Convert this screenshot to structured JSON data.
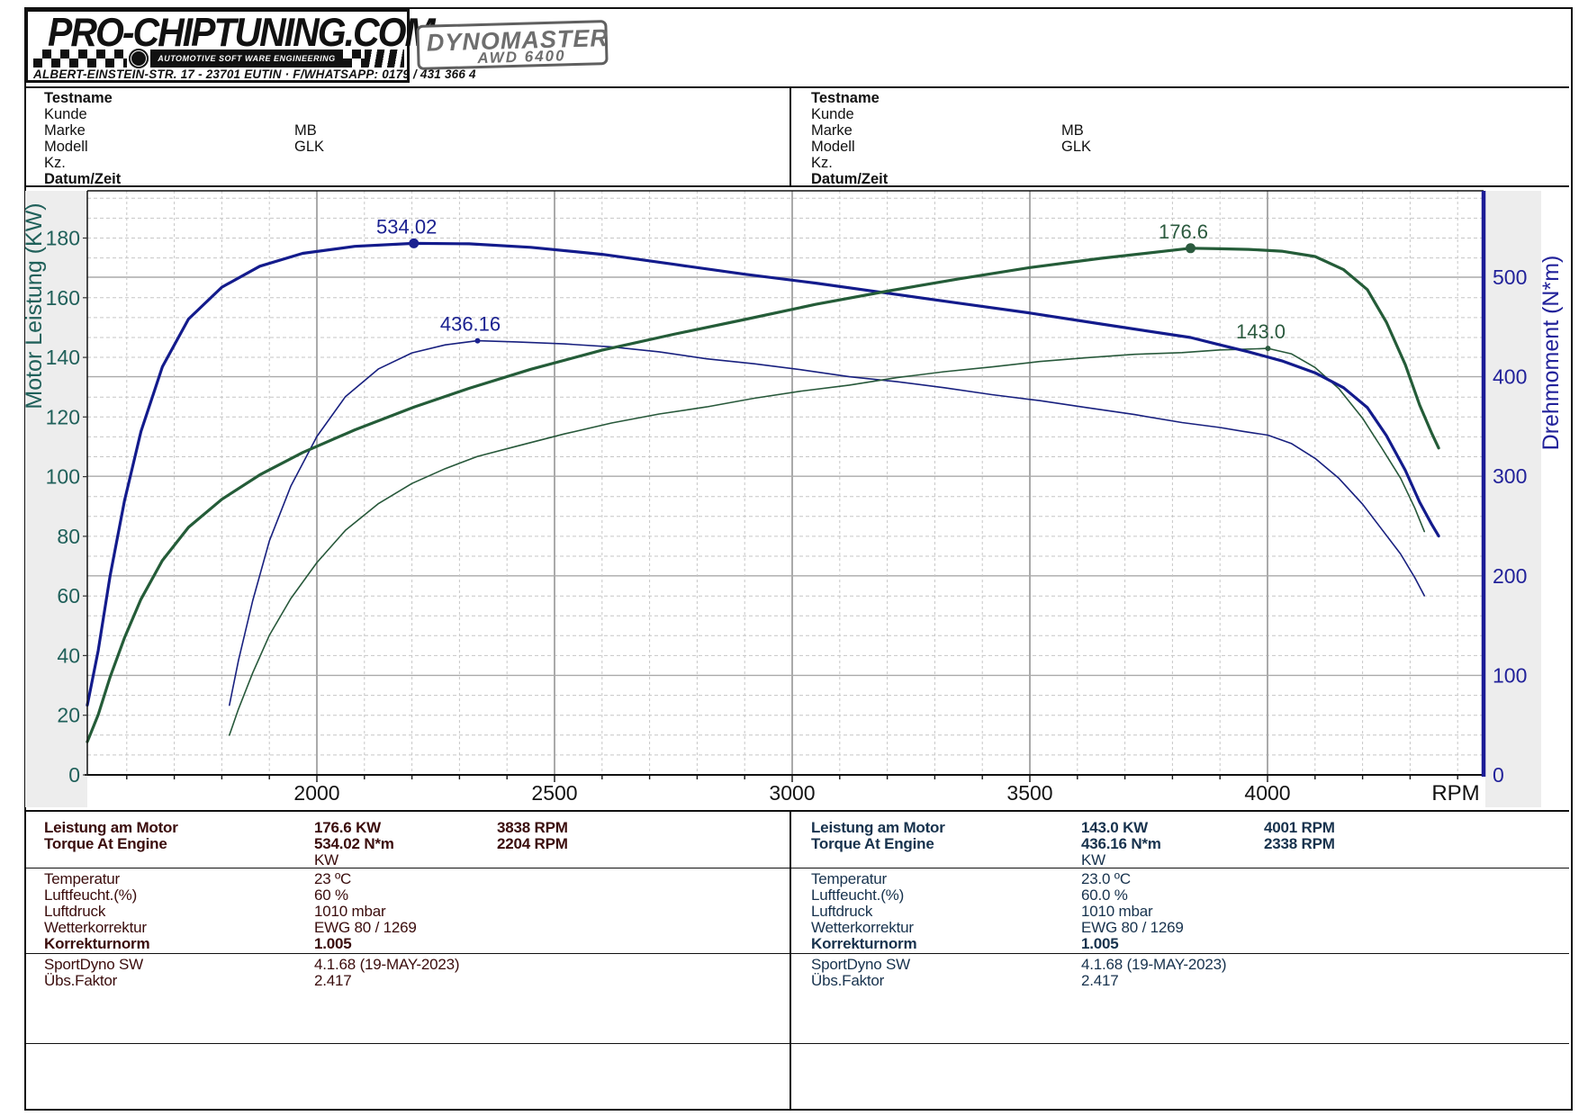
{
  "logo": {
    "brand": "PRO-CHIPTUNING.COM",
    "tagline": "AUTOMOTIVE SOFT WARE ENGINEERING",
    "address": "ALBERT-EINSTEIN-STR. 17 - 23701 EUTIN · F/WHATSAPP: 0179 / 431 366 4",
    "badge_line1": "DYNOMASTER",
    "badge_line2": "AWD 6400"
  },
  "header": {
    "left": {
      "rows": [
        {
          "label": "Testname",
          "value": "",
          "bold": true
        },
        {
          "label": "Kunde",
          "value": "",
          "bold": false
        },
        {
          "label": "Marke",
          "value": "MB",
          "bold": false
        },
        {
          "label": "Modell",
          "value": "GLK",
          "bold": false
        },
        {
          "label": "Kz.",
          "value": "",
          "bold": false
        },
        {
          "label": "Datum/Zeit",
          "value": "",
          "bold": true
        }
      ]
    },
    "right": {
      "rows": [
        {
          "label": "Testname",
          "value": "",
          "bold": true
        },
        {
          "label": "Kunde",
          "value": "",
          "bold": false
        },
        {
          "label": "Marke",
          "value": "MB",
          "bold": false
        },
        {
          "label": "Modell",
          "value": "GLK",
          "bold": false
        },
        {
          "label": "Kz.",
          "value": "",
          "bold": false
        },
        {
          "label": "Datum/Zeit",
          "value": "",
          "bold": true
        }
      ]
    }
  },
  "chart_data": {
    "type": "line",
    "xlabel": "RPM",
    "ylabel_left": "Motor Leistung (KW)",
    "ylabel_right": "Drehmoment (N*m)",
    "x_range": [
      1517,
      4454
    ],
    "x_ticks": [
      2000,
      2500,
      3000,
      3500,
      4000
    ],
    "x_minor_step": 100,
    "left_axis": {
      "range": [
        0,
        195.8
      ],
      "ticks": [
        0,
        20,
        40,
        60,
        80,
        100,
        120,
        140,
        160,
        180
      ],
      "color": "#20605a"
    },
    "right_axis": {
      "range": [
        0,
        586
      ],
      "ticks": [
        0,
        100,
        200,
        300,
        400,
        500
      ],
      "color": "#22229a"
    },
    "grid": {
      "solid": "#aaaaaa",
      "dashed": "#c6c6c6"
    },
    "series": [
      {
        "name": "torque-run2",
        "axis": "right",
        "unit": "N*m",
        "color": "#18207f",
        "width": 1.6,
        "points": [
          [
            1816,
            70
          ],
          [
            1835,
            115
          ],
          [
            1865,
            175
          ],
          [
            1900,
            235
          ],
          [
            1945,
            290
          ],
          [
            2000,
            340
          ],
          [
            2060,
            380
          ],
          [
            2130,
            408
          ],
          [
            2200,
            424
          ],
          [
            2270,
            432
          ],
          [
            2338,
            436.16
          ],
          [
            2420,
            435
          ],
          [
            2520,
            433
          ],
          [
            2620,
            430
          ],
          [
            2720,
            425
          ],
          [
            2820,
            418
          ],
          [
            2920,
            413
          ],
          [
            3020,
            407
          ],
          [
            3120,
            400
          ],
          [
            3220,
            395
          ],
          [
            3320,
            389
          ],
          [
            3420,
            382
          ],
          [
            3520,
            376
          ],
          [
            3620,
            369
          ],
          [
            3720,
            362
          ],
          [
            3820,
            354
          ],
          [
            3900,
            349
          ],
          [
            3950,
            345
          ],
          [
            4001,
            341.3
          ],
          [
            4050,
            333
          ],
          [
            4100,
            318
          ],
          [
            4150,
            298
          ],
          [
            4200,
            272
          ],
          [
            4240,
            247
          ],
          [
            4280,
            222
          ],
          [
            4310,
            198
          ],
          [
            4330,
            180
          ]
        ]
      },
      {
        "name": "power-run2",
        "axis": "left",
        "unit": "KW",
        "color": "#27583a",
        "width": 1.6,
        "points": [
          [
            1816,
            13.3
          ],
          [
            1835,
            22.1
          ],
          [
            1865,
            34.2
          ],
          [
            1900,
            46.8
          ],
          [
            1945,
            59.1
          ],
          [
            2000,
            71.2
          ],
          [
            2060,
            82
          ],
          [
            2130,
            91
          ],
          [
            2200,
            97.7
          ],
          [
            2270,
            102.7
          ],
          [
            2338,
            106.8
          ],
          [
            2420,
            110.2
          ],
          [
            2520,
            114.3
          ],
          [
            2620,
            118
          ],
          [
            2720,
            121
          ],
          [
            2820,
            123.4
          ],
          [
            2920,
            126.3
          ],
          [
            3020,
            128.7
          ],
          [
            3120,
            130.7
          ],
          [
            3220,
            133.2
          ],
          [
            3320,
            135.2
          ],
          [
            3420,
            136.8
          ],
          [
            3520,
            138.6
          ],
          [
            3620,
            139.9
          ],
          [
            3720,
            141
          ],
          [
            3820,
            141.6
          ],
          [
            3900,
            142.5
          ],
          [
            3950,
            142.7
          ],
          [
            4001,
            143
          ],
          [
            4050,
            141.2
          ],
          [
            4100,
            136.6
          ],
          [
            4150,
            129.5
          ],
          [
            4200,
            119.6
          ],
          [
            4240,
            109.7
          ],
          [
            4280,
            99.5
          ],
          [
            4310,
            89.4
          ],
          [
            4330,
            81.6
          ]
        ]
      },
      {
        "name": "torque-run1",
        "axis": "right",
        "unit": "N*m",
        "color": "#131b8c",
        "width": 3.2,
        "points": [
          [
            1517,
            70
          ],
          [
            1540,
            125
          ],
          [
            1565,
            200
          ],
          [
            1595,
            275
          ],
          [
            1630,
            345
          ],
          [
            1675,
            410
          ],
          [
            1730,
            458
          ],
          [
            1800,
            490
          ],
          [
            1880,
            511
          ],
          [
            1970,
            524
          ],
          [
            2080,
            531
          ],
          [
            2204,
            534.02
          ],
          [
            2320,
            533.5
          ],
          [
            2450,
            530
          ],
          [
            2600,
            523
          ],
          [
            2750,
            513
          ],
          [
            2900,
            503
          ],
          [
            3050,
            494
          ],
          [
            3200,
            484
          ],
          [
            3350,
            474
          ],
          [
            3500,
            464
          ],
          [
            3650,
            453
          ],
          [
            3838,
            439.4
          ],
          [
            3900,
            432
          ],
          [
            3960,
            425
          ],
          [
            4030,
            416
          ],
          [
            4100,
            404
          ],
          [
            4160,
            389
          ],
          [
            4210,
            369
          ],
          [
            4250,
            341
          ],
          [
            4290,
            306
          ],
          [
            4320,
            274
          ],
          [
            4345,
            252
          ],
          [
            4360,
            240
          ]
        ]
      },
      {
        "name": "power-run1",
        "axis": "left",
        "unit": "KW",
        "color": "#245c38",
        "width": 3.2,
        "points": [
          [
            1517,
            11.1
          ],
          [
            1540,
            20.2
          ],
          [
            1565,
            32.8
          ],
          [
            1595,
            45.9
          ],
          [
            1630,
            58.9
          ],
          [
            1675,
            71.9
          ],
          [
            1730,
            83
          ],
          [
            1800,
            92.4
          ],
          [
            1880,
            100.6
          ],
          [
            1970,
            108.1
          ],
          [
            2080,
            115.7
          ],
          [
            2204,
            123.3
          ],
          [
            2320,
            129.6
          ],
          [
            2450,
            136
          ],
          [
            2600,
            142.4
          ],
          [
            2750,
            147.7
          ],
          [
            2900,
            152.7
          ],
          [
            3050,
            157.8
          ],
          [
            3200,
            162.2
          ],
          [
            3350,
            166.3
          ],
          [
            3500,
            170.1
          ],
          [
            3650,
            173.2
          ],
          [
            3838,
            176.6
          ],
          [
            3900,
            176.4
          ],
          [
            3960,
            176.2
          ],
          [
            4030,
            175.6
          ],
          [
            4100,
            173.8
          ],
          [
            4160,
            169.4
          ],
          [
            4210,
            162.7
          ],
          [
            4250,
            151.8
          ],
          [
            4290,
            137.5
          ],
          [
            4320,
            124
          ],
          [
            4345,
            114.7
          ],
          [
            4360,
            109.6
          ]
        ]
      }
    ],
    "annotations": [
      {
        "text": "534.02",
        "rpm": 2204,
        "value": 534.02,
        "axis": "right",
        "color": "#1b2190",
        "marker_r": 5.5
      },
      {
        "text": "436.16",
        "rpm": 2338,
        "value": 436.16,
        "axis": "right",
        "color": "#1b2190",
        "marker_r": 3
      },
      {
        "text": "176.6",
        "rpm": 3838,
        "value": 176.6,
        "axis": "left",
        "color": "#2b5a3e",
        "marker_r": 5.5
      },
      {
        "text": "143.0",
        "rpm": 4001,
        "value": 143.0,
        "axis": "left",
        "color": "#2b5a3e",
        "marker_r": 3
      }
    ]
  },
  "results": {
    "left": {
      "text_color": "#3a0c0c",
      "peak_rows": [
        {
          "label": "Leistung am Motor",
          "value": "176.6 KW",
          "rpm": "3838 RPM",
          "bold": true
        },
        {
          "label": "Torque At Engine",
          "value": "534.02 N*m",
          "rpm": "2204 RPM",
          "bold": true
        },
        {
          "label": "",
          "value": "KW",
          "rpm": "",
          "bold": false
        }
      ],
      "info_rows": [
        {
          "label": "Temperatur",
          "value": "23 ºC",
          "bold": false
        },
        {
          "label": "Luftfeucht.(%)",
          "value": "60 %",
          "bold": false
        },
        {
          "label": "Luftdruck",
          "value": "1010 mbar",
          "bold": false
        },
        {
          "label": "Wetterkorrektur",
          "value": "EWG 80 / 1269",
          "bold": false
        },
        {
          "label": "Korrekturnorm",
          "value": "1.005",
          "bold": true
        }
      ],
      "footer_rows": [
        {
          "label": "SportDyno SW",
          "value": "4.1.68 (19-MAY-2023)",
          "bold": false
        },
        {
          "label": "Übs.Faktor",
          "value": "2.417",
          "bold": false
        }
      ]
    },
    "right": {
      "text_color": "#17324d",
      "peak_rows": [
        {
          "label": "Leistung am Motor",
          "value": "143.0 KW",
          "rpm": "4001 RPM",
          "bold": true
        },
        {
          "label": "Torque At Engine",
          "value": "436.16 N*m",
          "rpm": "2338 RPM",
          "bold": true
        },
        {
          "label": "",
          "value": "KW",
          "rpm": "",
          "bold": false
        }
      ],
      "info_rows": [
        {
          "label": "Temperatur",
          "value": "23.0 ºC",
          "bold": false
        },
        {
          "label": "Luftfeucht.(%)",
          "value": "60.0 %",
          "bold": false
        },
        {
          "label": "Luftdruck",
          "value": "1010 mbar",
          "bold": false
        },
        {
          "label": "Wetterkorrektur",
          "value": "EWG 80 / 1269",
          "bold": false
        },
        {
          "label": "Korrekturnorm",
          "value": "1.005",
          "bold": true
        }
      ],
      "footer_rows": [
        {
          "label": "SportDyno SW",
          "value": "4.1.68 (19-MAY-2023)",
          "bold": false
        },
        {
          "label": "Übs.Faktor",
          "value": "2.417",
          "bold": false
        }
      ]
    }
  }
}
